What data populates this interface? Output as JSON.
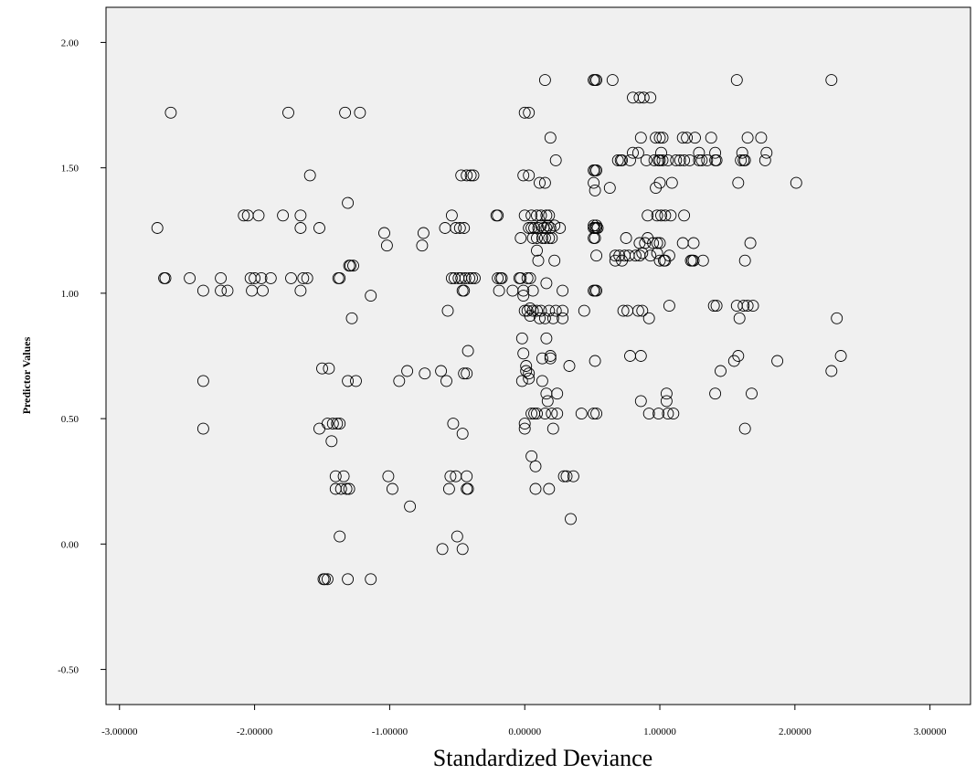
{
  "chart_data": {
    "type": "scatter",
    "title": "",
    "xlabel": "Standardized Deviance",
    "ylabel": "Predictor Values",
    "xlim": [
      -3.1,
      3.3
    ],
    "ylim": [
      -0.64,
      2.14
    ],
    "xticks": [
      -3,
      -2,
      -1,
      0,
      1,
      2,
      3
    ],
    "xtick_labels": [
      "-3.00000",
      "-2.00000",
      "-1.00000",
      "0.00000",
      "1.00000",
      "2.00000",
      "3.00000"
    ],
    "yticks": [
      -0.5,
      0,
      0.5,
      1,
      1.5,
      2
    ],
    "ytick_labels": [
      "-0.50",
      "0.00",
      "0.50",
      "1.00",
      "1.50",
      "2.00"
    ],
    "grid": false,
    "background": "#f0f0f0",
    "marker": "open-circle",
    "points": [
      [
        -2.72,
        1.26
      ],
      [
        -2.62,
        1.72
      ],
      [
        -2.67,
        1.06
      ],
      [
        -2.66,
        1.06
      ],
      [
        -2.48,
        1.06
      ],
      [
        -2.38,
        1.01
      ],
      [
        -2.38,
        0.65
      ],
      [
        -2.38,
        0.46
      ],
      [
        -2.25,
        1.06
      ],
      [
        -2.25,
        1.01
      ],
      [
        -2.2,
        1.01
      ],
      [
        -2.08,
        1.31
      ],
      [
        -2.05,
        1.31
      ],
      [
        -2.03,
        1.06
      ],
      [
        -2.02,
        1.01
      ],
      [
        -2.0,
        1.06
      ],
      [
        -1.97,
        1.31
      ],
      [
        -1.95,
        1.06
      ],
      [
        -1.94,
        1.01
      ],
      [
        -1.88,
        1.06
      ],
      [
        -1.79,
        1.31
      ],
      [
        -1.75,
        1.72
      ],
      [
        -1.73,
        1.06
      ],
      [
        -1.66,
        1.31
      ],
      [
        -1.66,
        1.26
      ],
      [
        -1.66,
        1.01
      ],
      [
        -1.64,
        1.06
      ],
      [
        -1.61,
        1.06
      ],
      [
        -1.59,
        1.47
      ],
      [
        -1.52,
        1.26
      ],
      [
        -1.52,
        0.46
      ],
      [
        -1.5,
        0.7
      ],
      [
        -1.46,
        0.48
      ],
      [
        -1.45,
        0.7
      ],
      [
        -1.43,
        0.41
      ],
      [
        -1.42,
        0.48
      ],
      [
        -1.39,
        0.48
      ],
      [
        -1.37,
        0.48
      ],
      [
        -1.4,
        0.27
      ],
      [
        -1.4,
        0.22
      ],
      [
        -1.38,
        1.06
      ],
      [
        -1.37,
        1.06
      ],
      [
        -1.37,
        0.03
      ],
      [
        -1.36,
        0.22
      ],
      [
        -1.34,
        0.27
      ],
      [
        -1.33,
        1.72
      ],
      [
        -1.32,
        0.22
      ],
      [
        -1.3,
        0.22
      ],
      [
        -1.31,
        0.65
      ],
      [
        -1.31,
        1.36
      ],
      [
        -1.3,
        1.11
      ],
      [
        -1.29,
        1.11
      ],
      [
        -1.28,
        0.9
      ],
      [
        -1.27,
        1.11
      ],
      [
        -1.25,
        0.65
      ],
      [
        -1.22,
        1.72
      ],
      [
        -1.31,
        -0.14
      ],
      [
        -1.49,
        -0.14
      ],
      [
        -1.48,
        -0.14
      ],
      [
        -1.46,
        -0.14
      ],
      [
        -1.14,
        -0.14
      ],
      [
        -1.14,
        0.99
      ],
      [
        -1.04,
        1.24
      ],
      [
        -1.02,
        1.19
      ],
      [
        -1.01,
        0.27
      ],
      [
        -0.98,
        0.22
      ],
      [
        -0.93,
        0.65
      ],
      [
        -0.87,
        0.69
      ],
      [
        -0.85,
        0.15
      ],
      [
        -0.76,
        1.19
      ],
      [
        -0.75,
        1.24
      ],
      [
        -0.74,
        0.68
      ],
      [
        -0.62,
        0.69
      ],
      [
        -0.61,
        -0.02
      ],
      [
        -0.59,
        1.26
      ],
      [
        -0.58,
        0.65
      ],
      [
        -0.57,
        0.93
      ],
      [
        -0.56,
        0.22
      ],
      [
        -0.55,
        0.27
      ],
      [
        -0.54,
        1.31
      ],
      [
        -0.54,
        1.06
      ],
      [
        -0.53,
        0.48
      ],
      [
        -0.52,
        1.06
      ],
      [
        -0.51,
        1.26
      ],
      [
        -0.51,
        0.27
      ],
      [
        -0.5,
        0.03
      ],
      [
        -0.49,
        1.06
      ],
      [
        -0.48,
        1.26
      ],
      [
        -0.47,
        1.47
      ],
      [
        -0.47,
        1.06
      ],
      [
        -0.46,
        1.01
      ],
      [
        -0.46,
        -0.02
      ],
      [
        -0.46,
        0.44
      ],
      [
        -0.45,
        1.26
      ],
      [
        -0.45,
        1.01
      ],
      [
        -0.45,
        0.68
      ],
      [
        -0.44,
        1.06
      ],
      [
        -0.43,
        1.47
      ],
      [
        -0.43,
        0.68
      ],
      [
        -0.43,
        0.27
      ],
      [
        -0.43,
        0.22
      ],
      [
        -0.42,
        0.22
      ],
      [
        -0.42,
        0.77
      ],
      [
        -0.41,
        1.06
      ],
      [
        -0.4,
        1.47
      ],
      [
        -0.39,
        1.06
      ],
      [
        -0.38,
        1.47
      ],
      [
        -0.37,
        1.06
      ],
      [
        -0.21,
        1.31
      ],
      [
        -0.2,
        1.31
      ],
      [
        -0.2,
        1.06
      ],
      [
        -0.19,
        1.01
      ],
      [
        -0.18,
        1.06
      ],
      [
        -0.17,
        1.06
      ],
      [
        -0.09,
        1.01
      ],
      [
        -0.04,
        1.06
      ],
      [
        -0.03,
        1.06
      ],
      [
        -0.03,
        1.22
      ],
      [
        -0.02,
        0.82
      ],
      [
        -0.02,
        0.65
      ],
      [
        -0.01,
        1.47
      ],
      [
        -0.01,
        1.01
      ],
      [
        -0.01,
        0.99
      ],
      [
        -0.01,
        0.76
      ],
      [
        0.0,
        1.72
      ],
      [
        0.0,
        1.31
      ],
      [
        0.0,
        0.93
      ],
      [
        0.0,
        0.48
      ],
      [
        0.0,
        0.46
      ],
      [
        0.01,
        0.71
      ],
      [
        0.01,
        0.69
      ],
      [
        0.02,
        1.06
      ],
      [
        0.02,
        0.93
      ],
      [
        0.03,
        1.72
      ],
      [
        0.03,
        1.47
      ],
      [
        0.03,
        1.26
      ],
      [
        0.03,
        0.68
      ],
      [
        0.03,
        0.66
      ],
      [
        0.04,
        1.06
      ],
      [
        0.04,
        0.94
      ],
      [
        0.04,
        0.91
      ],
      [
        0.05,
        1.31
      ],
      [
        0.05,
        1.26
      ],
      [
        0.05,
        0.52
      ],
      [
        0.05,
        0.35
      ],
      [
        0.06,
        1.22
      ],
      [
        0.06,
        1.01
      ],
      [
        0.06,
        0.93
      ],
      [
        0.07,
        1.26
      ],
      [
        0.07,
        0.52
      ],
      [
        0.08,
        0.31
      ],
      [
        0.08,
        0.22
      ],
      [
        0.09,
        1.31
      ],
      [
        0.09,
        1.22
      ],
      [
        0.09,
        1.17
      ],
      [
        0.09,
        0.93
      ],
      [
        0.09,
        0.52
      ],
      [
        0.1,
        1.26
      ],
      [
        0.1,
        1.13
      ],
      [
        0.11,
        1.44
      ],
      [
        0.11,
        0.9
      ],
      [
        0.12,
        1.31
      ],
      [
        0.12,
        1.27
      ],
      [
        0.12,
        0.93
      ],
      [
        0.13,
        1.22
      ],
      [
        0.13,
        0.65
      ],
      [
        0.13,
        0.74
      ],
      [
        0.14,
        1.26
      ],
      [
        0.15,
        1.85
      ],
      [
        0.15,
        1.44
      ],
      [
        0.15,
        1.22
      ],
      [
        0.15,
        0.9
      ],
      [
        0.15,
        0.52
      ],
      [
        0.16,
        1.31
      ],
      [
        0.16,
        1.26
      ],
      [
        0.16,
        1.04
      ],
      [
        0.16,
        0.82
      ],
      [
        0.16,
        0.6
      ],
      [
        0.17,
        1.27
      ],
      [
        0.17,
        0.57
      ],
      [
        0.18,
        1.31
      ],
      [
        0.18,
        1.22
      ],
      [
        0.18,
        0.93
      ],
      [
        0.18,
        0.22
      ],
      [
        0.19,
        1.62
      ],
      [
        0.19,
        1.26
      ],
      [
        0.19,
        0.75
      ],
      [
        0.19,
        0.74
      ],
      [
        0.2,
        1.22
      ],
      [
        0.2,
        0.52
      ],
      [
        0.21,
        0.9
      ],
      [
        0.21,
        0.46
      ],
      [
        0.22,
        1.27
      ],
      [
        0.22,
        1.13
      ],
      [
        0.23,
        1.53
      ],
      [
        0.23,
        0.93
      ],
      [
        0.24,
        0.6
      ],
      [
        0.24,
        0.52
      ],
      [
        0.26,
        1.26
      ],
      [
        0.28,
        1.01
      ],
      [
        0.28,
        0.93
      ],
      [
        0.28,
        0.9
      ],
      [
        0.29,
        0.27
      ],
      [
        0.31,
        0.27
      ],
      [
        0.33,
        0.71
      ],
      [
        0.34,
        0.1
      ],
      [
        0.36,
        0.27
      ],
      [
        0.42,
        0.52
      ],
      [
        0.44,
        0.93
      ],
      [
        0.51,
        1.85
      ],
      [
        0.51,
        1.49
      ],
      [
        0.51,
        1.44
      ],
      [
        0.51,
        1.27
      ],
      [
        0.51,
        1.26
      ],
      [
        0.51,
        1.22
      ],
      [
        0.51,
        1.01
      ],
      [
        0.51,
        0.52
      ],
      [
        0.52,
        1.85
      ],
      [
        0.52,
        1.49
      ],
      [
        0.52,
        1.41
      ],
      [
        0.52,
        1.26
      ],
      [
        0.52,
        1.22
      ],
      [
        0.52,
        1.01
      ],
      [
        0.52,
        0.73
      ],
      [
        0.53,
        1.85
      ],
      [
        0.53,
        1.49
      ],
      [
        0.53,
        1.27
      ],
      [
        0.53,
        1.26
      ],
      [
        0.53,
        1.01
      ],
      [
        0.53,
        0.52
      ],
      [
        0.53,
        1.15
      ],
      [
        0.54,
        1.26
      ],
      [
        0.63,
        1.42
      ],
      [
        0.65,
        1.85
      ],
      [
        0.67,
        1.13
      ],
      [
        0.67,
        1.15
      ],
      [
        0.69,
        1.53
      ],
      [
        0.7,
        1.15
      ],
      [
        0.71,
        1.53
      ],
      [
        0.72,
        1.53
      ],
      [
        0.72,
        1.13
      ],
      [
        0.73,
        0.93
      ],
      [
        0.74,
        1.15
      ],
      [
        0.75,
        1.22
      ],
      [
        0.76,
        0.93
      ],
      [
        0.77,
        1.15
      ],
      [
        0.78,
        0.75
      ],
      [
        0.78,
        1.53
      ],
      [
        0.8,
        1.78
      ],
      [
        0.8,
        1.56
      ],
      [
        0.82,
        1.15
      ],
      [
        0.84,
        0.93
      ],
      [
        0.84,
        1.56
      ],
      [
        0.85,
        1.78
      ],
      [
        0.85,
        1.2
      ],
      [
        0.85,
        1.15
      ],
      [
        0.86,
        1.62
      ],
      [
        0.86,
        0.75
      ],
      [
        0.86,
        0.57
      ],
      [
        0.87,
        1.16
      ],
      [
        0.87,
        0.93
      ],
      [
        0.88,
        1.78
      ],
      [
        0.89,
        1.2
      ],
      [
        0.9,
        1.53
      ],
      [
        0.91,
        1.31
      ],
      [
        0.91,
        1.22
      ],
      [
        0.92,
        0.9
      ],
      [
        0.92,
        0.52
      ],
      [
        0.93,
        1.78
      ],
      [
        0.93,
        1.15
      ],
      [
        0.95,
        1.2
      ],
      [
        0.96,
        1.53
      ],
      [
        0.97,
        1.62
      ],
      [
        0.97,
        1.42
      ],
      [
        0.98,
        1.31
      ],
      [
        0.98,
        1.2
      ],
      [
        0.98,
        1.16
      ],
      [
        0.99,
        1.53
      ],
      [
        0.99,
        0.52
      ],
      [
        1.0,
        1.62
      ],
      [
        1.0,
        1.53
      ],
      [
        1.0,
        1.44
      ],
      [
        1.0,
        1.2
      ],
      [
        1.0,
        1.13
      ],
      [
        1.01,
        1.56
      ],
      [
        1.01,
        1.31
      ],
      [
        1.02,
        1.62
      ],
      [
        1.02,
        1.53
      ],
      [
        1.03,
        1.13
      ],
      [
        1.04,
        1.31
      ],
      [
        1.04,
        1.13
      ],
      [
        1.05,
        0.6
      ],
      [
        1.05,
        0.57
      ],
      [
        1.06,
        0.52
      ],
      [
        1.06,
        1.53
      ],
      [
        1.07,
        0.95
      ],
      [
        1.07,
        1.15
      ],
      [
        1.08,
        1.31
      ],
      [
        1.09,
        1.44
      ],
      [
        1.1,
        0.52
      ],
      [
        1.12,
        1.53
      ],
      [
        1.15,
        1.53
      ],
      [
        1.17,
        1.62
      ],
      [
        1.17,
        1.2
      ],
      [
        1.18,
        1.53
      ],
      [
        1.18,
        1.31
      ],
      [
        1.2,
        1.62
      ],
      [
        1.22,
        1.53
      ],
      [
        1.23,
        1.13
      ],
      [
        1.24,
        1.13
      ],
      [
        1.25,
        1.2
      ],
      [
        1.25,
        1.13
      ],
      [
        1.26,
        1.62
      ],
      [
        1.29,
        1.56
      ],
      [
        1.29,
        1.53
      ],
      [
        1.31,
        1.53
      ],
      [
        1.32,
        1.13
      ],
      [
        1.35,
        1.53
      ],
      [
        1.38,
        1.62
      ],
      [
        1.4,
        0.95
      ],
      [
        1.41,
        1.56
      ],
      [
        1.41,
        1.53
      ],
      [
        1.41,
        0.6
      ],
      [
        1.42,
        1.53
      ],
      [
        1.42,
        0.95
      ],
      [
        1.45,
        0.69
      ],
      [
        1.55,
        0.73
      ],
      [
        1.57,
        1.85
      ],
      [
        1.57,
        0.95
      ],
      [
        1.58,
        1.44
      ],
      [
        1.58,
        0.75
      ],
      [
        1.59,
        0.9
      ],
      [
        1.6,
        1.53
      ],
      [
        1.61,
        1.56
      ],
      [
        1.62,
        1.53
      ],
      [
        1.62,
        0.95
      ],
      [
        1.63,
        1.53
      ],
      [
        1.63,
        1.13
      ],
      [
        1.63,
        0.46
      ],
      [
        1.65,
        1.62
      ],
      [
        1.65,
        0.95
      ],
      [
        1.67,
        1.2
      ],
      [
        1.68,
        0.6
      ],
      [
        1.69,
        0.95
      ],
      [
        1.75,
        1.62
      ],
      [
        1.78,
        1.53
      ],
      [
        1.79,
        1.56
      ],
      [
        1.87,
        0.73
      ],
      [
        2.01,
        1.44
      ],
      [
        2.27,
        1.85
      ],
      [
        2.27,
        0.69
      ],
      [
        2.31,
        0.9
      ],
      [
        2.34,
        0.75
      ]
    ]
  }
}
